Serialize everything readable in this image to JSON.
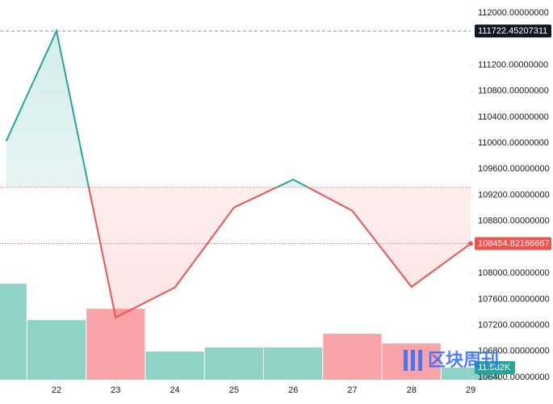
{
  "chart_data": {
    "type": "baseline",
    "x": [
      21.15,
      22,
      23,
      24,
      25,
      26,
      27,
      28,
      29
    ],
    "xlim": [
      21.045,
      29.0
    ],
    "xticks": [
      22,
      23,
      24,
      25,
      26,
      27,
      28,
      29
    ],
    "ylim": [
      106363,
      112199
    ],
    "yticks": [
      {
        "value": 112000,
        "label": "112000.00000000"
      },
      {
        "value": 111200,
        "label": "111200.00000000"
      },
      {
        "value": 110800,
        "label": "110800.00000000"
      },
      {
        "value": 110400,
        "label": "110400.00000000"
      },
      {
        "value": 110000,
        "label": "110000.00000000"
      },
      {
        "value": 109600,
        "label": "109600.00000000"
      },
      {
        "value": 109200,
        "label": "109200.00000000"
      },
      {
        "value": 108800,
        "label": "108800.00000000"
      },
      {
        "value": 108000,
        "label": "108000.00000000"
      },
      {
        "value": 107600,
        "label": "107600.00000000"
      },
      {
        "value": 107200,
        "label": "107200.00000000"
      },
      {
        "value": 106800,
        "label": "106800.00000000"
      },
      {
        "value": 106400,
        "label": "106400.00000000"
      }
    ],
    "baseline": 109320,
    "up_color": "#26a69a",
    "down_color": "#ef5350",
    "series": [
      {
        "values": [
          110030,
          111722.45207311,
          107320,
          107780,
          109010,
          109440,
          108960,
          107790,
          108454.82166667
        ],
        "value_labels": [
          null,
          "111722.45207311",
          null,
          null,
          null,
          null,
          null,
          null,
          "108454.82166667"
        ]
      }
    ],
    "volume": {
      "x": [
        21,
        22,
        23,
        24,
        25,
        26,
        27,
        28,
        29
      ],
      "values": [
        91900,
        57100,
        67900,
        27000,
        30900,
        30900,
        44000,
        34700,
        11582
      ],
      "value_labels": [
        null,
        null,
        null,
        null,
        null,
        null,
        null,
        null,
        "11.582K"
      ],
      "colors": [
        "#8fd3c7",
        "#8fd3c7",
        "#f9a4a8",
        "#8fd3c7",
        "#8fd3c7",
        "#8fd3c7",
        "#f9a4a8",
        "#f9a4a8",
        "#8fd3c7"
      ],
      "vlim": [
        0,
        150000
      ]
    }
  },
  "watermark": "区块周刊"
}
